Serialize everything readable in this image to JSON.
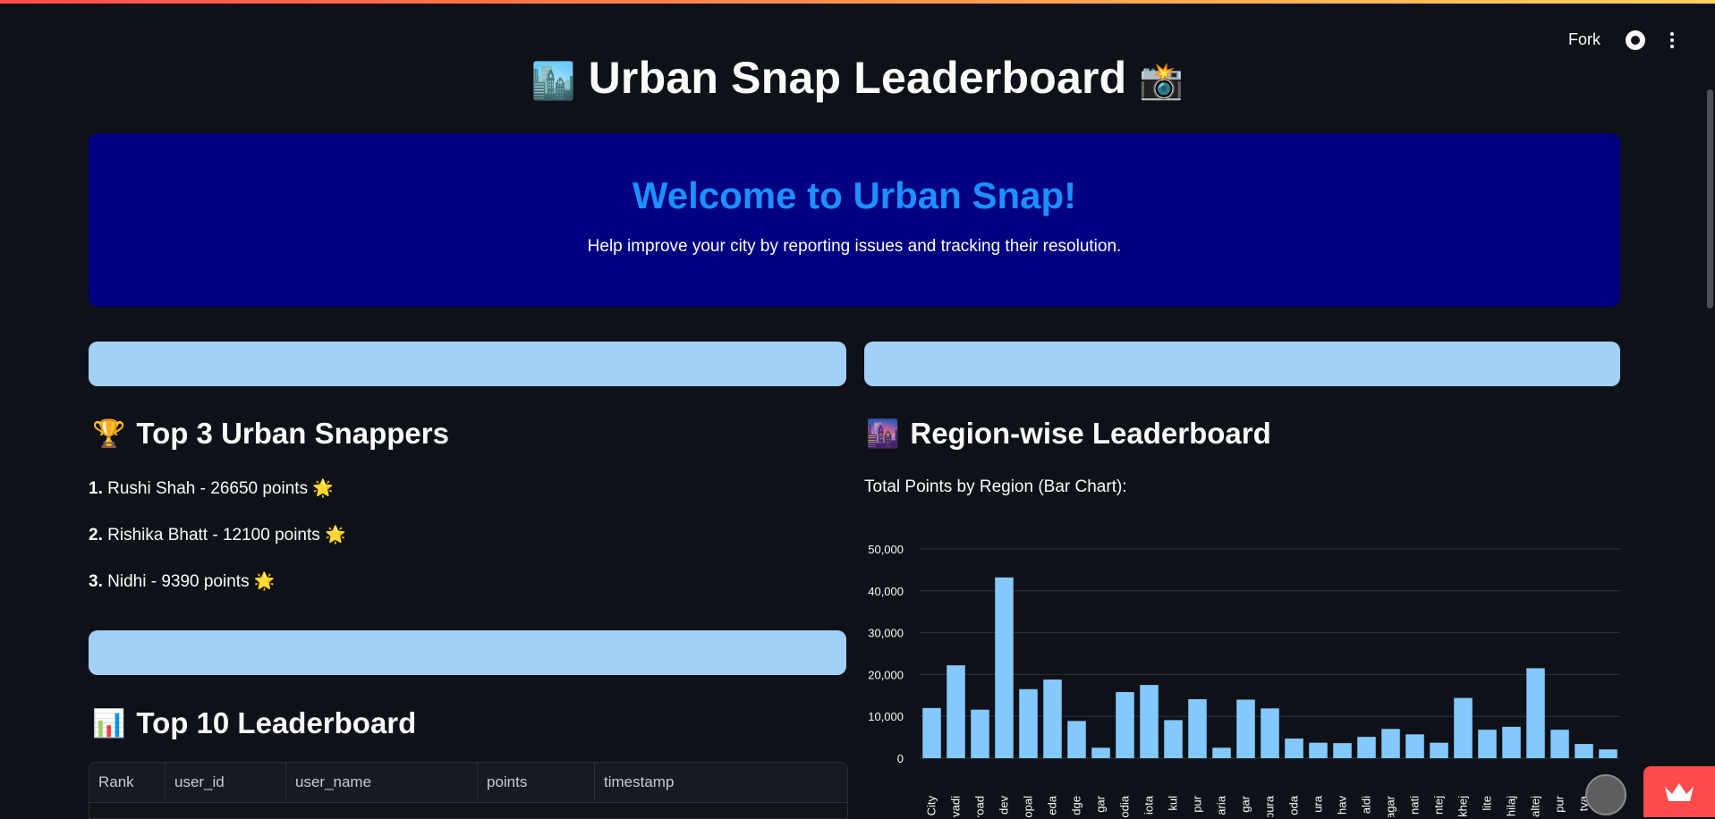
{
  "toolbar": {
    "fork_label": "Fork",
    "github_icon": "github-icon",
    "menu_icon": "more-vertical-icon"
  },
  "header": {
    "title": "Urban Snap Leaderboard",
    "left_emoji": "🏙️",
    "right_emoji": "📸"
  },
  "welcome": {
    "title": "Welcome to Urban Snap!",
    "subtitle": "Help improve your city by reporting issues and tracking their resolution."
  },
  "top3": {
    "title": "Top 3 Urban Snappers",
    "icon": "🏆",
    "items": [
      {
        "rank": "1.",
        "text": "Rushi Shah - 26650 points",
        "emoji": "🌟"
      },
      {
        "rank": "2.",
        "text": "Rishika Bhatt - 12100 points",
        "emoji": "🌟"
      },
      {
        "rank": "3.",
        "text": "Nidhi - 9390 points",
        "emoji": "🌟"
      }
    ]
  },
  "top10": {
    "title": "Top 10 Leaderboard",
    "icon": "📊",
    "columns": [
      "Rank",
      "user_id",
      "user_name",
      "points",
      "timestamp"
    ]
  },
  "region": {
    "title": "Region-wise Leaderboard",
    "icon": "🌆",
    "caption": "Total Points by Region (Bar Chart):"
  },
  "colors": {
    "bar": "#83c9ff",
    "welcome_bg": "#000080",
    "welcome_title": "#1e8fff",
    "pill": "#a3d0f7",
    "page_bg": "#0e1117"
  },
  "chart_data": {
    "type": "bar",
    "categories": [
      "City",
      "vadi",
      "road",
      "dev",
      "opal",
      "eda",
      "dge",
      "gar",
      "odia",
      "iota",
      "kul",
      "pur",
      "aria",
      "gar",
      "pura",
      "oda",
      "ura",
      "hav",
      "aldi",
      "agar",
      "nati",
      "ntej",
      "khej",
      "lite",
      "hilaj",
      "altej",
      "pur",
      "tva",
      "p"
    ],
    "values": [
      12000,
      22200,
      11600,
      43200,
      16500,
      18800,
      8900,
      2500,
      15800,
      17500,
      9100,
      14100,
      2500,
      14000,
      11900,
      4700,
      3700,
      3600,
      5100,
      7000,
      5700,
      3700,
      14400,
      6800,
      7500,
      21500,
      6800,
      3400,
      2100
    ],
    "ylim": [
      0,
      50000
    ],
    "yticks": [
      "0",
      "10,000",
      "20,000",
      "30,000",
      "40,000",
      "50,000"
    ],
    "grid": true
  }
}
